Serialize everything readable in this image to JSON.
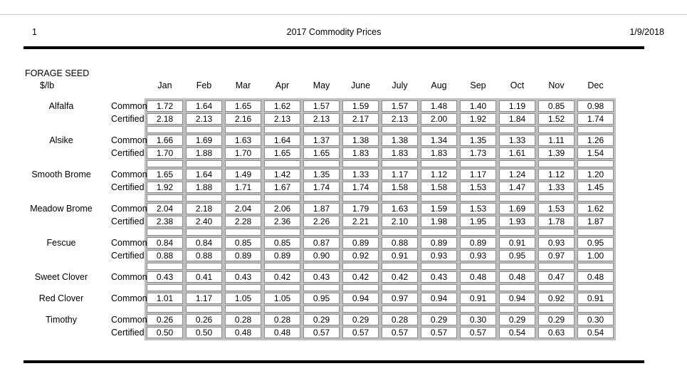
{
  "page": {
    "page_number": "1",
    "title": "2017 Commodity Prices",
    "date": "1/9/2018"
  },
  "section": {
    "title": "FORAGE SEED",
    "unit": "$/lb"
  },
  "table": {
    "months": [
      "Jan",
      "Feb",
      "Mar",
      "Apr",
      "May",
      "June",
      "July",
      "Aug",
      "Sep",
      "Oct",
      "Nov",
      "Dec"
    ],
    "groups": [
      {
        "name": "Alfalfa",
        "rows": [
          {
            "grade": "Common",
            "values": [
              "1.72",
              "1.64",
              "1.65",
              "1.62",
              "1.57",
              "1.59",
              "1.57",
              "1.48",
              "1.40",
              "1.19",
              "0.85",
              "0.98"
            ]
          },
          {
            "grade": "Certified",
            "values": [
              "2.18",
              "2.13",
              "2.16",
              "2.13",
              "2.13",
              "2.17",
              "2.13",
              "2.00",
              "1.92",
              "1.84",
              "1.52",
              "1.74"
            ]
          }
        ]
      },
      {
        "name": "Alsike",
        "rows": [
          {
            "grade": "Common",
            "values": [
              "1.66",
              "1.69",
              "1.63",
              "1.64",
              "1.37",
              "1.38",
              "1.38",
              "1.34",
              "1.35",
              "1.33",
              "1.11",
              "1.26"
            ]
          },
          {
            "grade": "Certified",
            "values": [
              "1.70",
              "1.88",
              "1.70",
              "1.65",
              "1.65",
              "1.83",
              "1.83",
              "1.83",
              "1.73",
              "1.61",
              "1.39",
              "1.54"
            ]
          }
        ]
      },
      {
        "name": "Smooth Brome",
        "rows": [
          {
            "grade": "Common",
            "values": [
              "1.65",
              "1.64",
              "1.49",
              "1.42",
              "1.35",
              "1.33",
              "1.17",
              "1.12",
              "1.17",
              "1.24",
              "1.12",
              "1.20"
            ]
          },
          {
            "grade": "Certified",
            "values": [
              "1.92",
              "1.88",
              "1.71",
              "1.67",
              "1.74",
              "1.74",
              "1.58",
              "1.58",
              "1.53",
              "1.47",
              "1.33",
              "1.45"
            ]
          }
        ]
      },
      {
        "name": "Meadow Brome",
        "rows": [
          {
            "grade": "Common",
            "values": [
              "2.04",
              "2.18",
              "2.04",
              "2.06",
              "1.87",
              "1.79",
              "1.63",
              "1.59",
              "1.53",
              "1.69",
              "1.53",
              "1.62"
            ]
          },
          {
            "grade": "Certified",
            "values": [
              "2.38",
              "2.40",
              "2.28",
              "2.36",
              "2.26",
              "2.21",
              "2.10",
              "1.98",
              "1.95",
              "1.93",
              "1.78",
              "1.87"
            ]
          }
        ]
      },
      {
        "name": "Fescue",
        "rows": [
          {
            "grade": "Common",
            "values": [
              "0.84",
              "0.84",
              "0.85",
              "0.85",
              "0.87",
              "0.89",
              "0.88",
              "0.89",
              "0.89",
              "0.91",
              "0.93",
              "0.95"
            ]
          },
          {
            "grade": "Certified",
            "values": [
              "0.88",
              "0.88",
              "0.89",
              "0.89",
              "0.90",
              "0.92",
              "0.91",
              "0.93",
              "0.93",
              "0.95",
              "0.97",
              "1.00"
            ]
          }
        ]
      },
      {
        "name": "Sweet Clover",
        "rows": [
          {
            "grade": "Common",
            "values": [
              "0.43",
              "0.41",
              "0.43",
              "0.42",
              "0.43",
              "0.42",
              "0.42",
              "0.43",
              "0.48",
              "0.48",
              "0.47",
              "0.48"
            ]
          }
        ]
      },
      {
        "name": "Red Clover",
        "rows": [
          {
            "grade": "Common",
            "values": [
              "1.01",
              "1.17",
              "1.05",
              "1.05",
              "0.95",
              "0.94",
              "0.97",
              "0.94",
              "0.91",
              "0.94",
              "0.92",
              "0.91"
            ]
          }
        ]
      },
      {
        "name": "Timothy",
        "rows": [
          {
            "grade": "Common",
            "values": [
              "0.26",
              "0.26",
              "0.28",
              "0.28",
              "0.29",
              "0.29",
              "0.28",
              "0.29",
              "0.30",
              "0.29",
              "0.29",
              "0.30"
            ]
          },
          {
            "grade": "Certified",
            "values": [
              "0.50",
              "0.50",
              "0.48",
              "0.48",
              "0.57",
              "0.57",
              "0.57",
              "0.57",
              "0.57",
              "0.54",
              "0.63",
              "0.54"
            ]
          }
        ]
      }
    ]
  },
  "colors": {
    "rule": "#000000",
    "table_backdrop": "#bfbfbf",
    "cell_border": "#8c8c8c",
    "page_edge": "#c9c9c9",
    "text": "#000000"
  }
}
